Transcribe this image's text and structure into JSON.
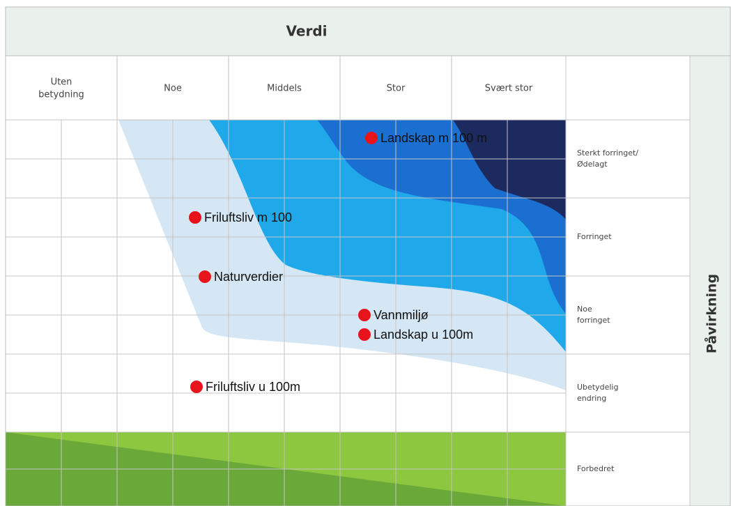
{
  "title": "Verdi",
  "side_label": "Påvirkning",
  "columns": [
    [
      "Uten",
      "betydning"
    ],
    [
      "Noe"
    ],
    [
      "Middels"
    ],
    [
      "Stor"
    ],
    [
      "Svært stor"
    ]
  ],
  "rows": [
    [
      "Sterkt forringet/",
      "Ødelagt"
    ],
    [
      "Forringet"
    ],
    [
      "Noe",
      "forringet"
    ],
    [
      "Ubetydelig",
      "endring"
    ],
    [
      "Forbedret"
    ]
  ],
  "points": [
    {
      "label": "Landskap m 100 m"
    },
    {
      "label": "Friluftsliv m 100"
    },
    {
      "label": "Naturverdier"
    },
    {
      "label": "Vannmiljø"
    },
    {
      "label": "Landskap u 100m"
    },
    {
      "label": "Friluftsliv u 100m"
    }
  ]
}
